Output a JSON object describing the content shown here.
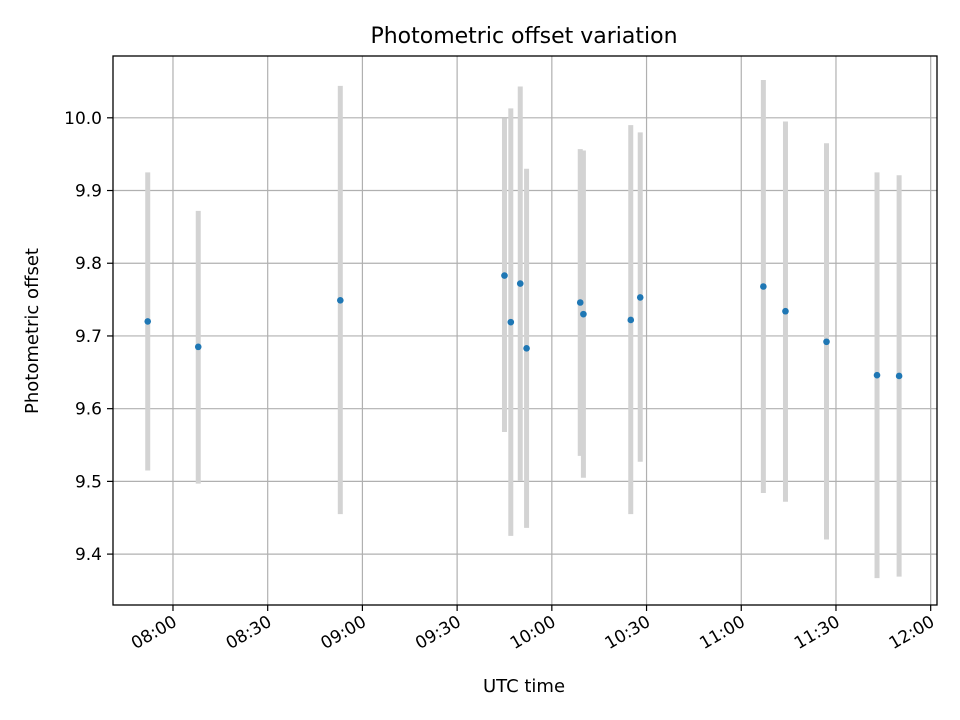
{
  "chart_data": {
    "type": "scatter",
    "title": "Photometric offset variation",
    "xlabel": "UTC time",
    "ylabel": "Photometric offset",
    "grid": true,
    "xlim": [
      "07:41",
      "12:02"
    ],
    "ylim": [
      9.33,
      10.085
    ],
    "x_ticks": [
      "08:00",
      "08:30",
      "09:00",
      "09:30",
      "10:00",
      "10:30",
      "11:00",
      "11:30",
      "12:00"
    ],
    "y_ticks": [
      "9.4",
      "9.5",
      "9.6",
      "9.7",
      "9.8",
      "9.9",
      "10.0"
    ],
    "series": [
      {
        "marker_color": "#1f77b4",
        "errorbar_color": "#d3d3d3",
        "points": [
          {
            "x": "07:52",
            "y": 9.72,
            "ylow": 9.515,
            "yhigh": 9.925
          },
          {
            "x": "08:08",
            "y": 9.685,
            "ylow": 9.497,
            "yhigh": 9.872
          },
          {
            "x": "08:53",
            "y": 9.749,
            "ylow": 9.455,
            "yhigh": 10.044
          },
          {
            "x": "09:45",
            "y": 9.783,
            "ylow": 9.568,
            "yhigh": 9.999
          },
          {
            "x": "09:47",
            "y": 9.719,
            "ylow": 9.425,
            "yhigh": 10.013
          },
          {
            "x": "09:50",
            "y": 9.772,
            "ylow": 9.501,
            "yhigh": 10.043
          },
          {
            "x": "09:52",
            "y": 9.683,
            "ylow": 9.436,
            "yhigh": 9.93
          },
          {
            "x": "10:09",
            "y": 9.746,
            "ylow": 9.535,
            "yhigh": 9.957
          },
          {
            "x": "10:10",
            "y": 9.73,
            "ylow": 9.505,
            "yhigh": 9.955
          },
          {
            "x": "10:25",
            "y": 9.722,
            "ylow": 9.455,
            "yhigh": 9.99
          },
          {
            "x": "10:28",
            "y": 9.753,
            "ylow": 9.527,
            "yhigh": 9.98
          },
          {
            "x": "11:07",
            "y": 9.768,
            "ylow": 9.484,
            "yhigh": 10.052
          },
          {
            "x": "11:14",
            "y": 9.734,
            "ylow": 9.472,
            "yhigh": 9.995
          },
          {
            "x": "11:27",
            "y": 9.692,
            "ylow": 9.42,
            "yhigh": 9.965
          },
          {
            "x": "11:43",
            "y": 9.646,
            "ylow": 9.367,
            "yhigh": 9.925
          },
          {
            "x": "11:50",
            "y": 9.645,
            "ylow": 9.369,
            "yhigh": 9.921
          }
        ]
      }
    ]
  }
}
